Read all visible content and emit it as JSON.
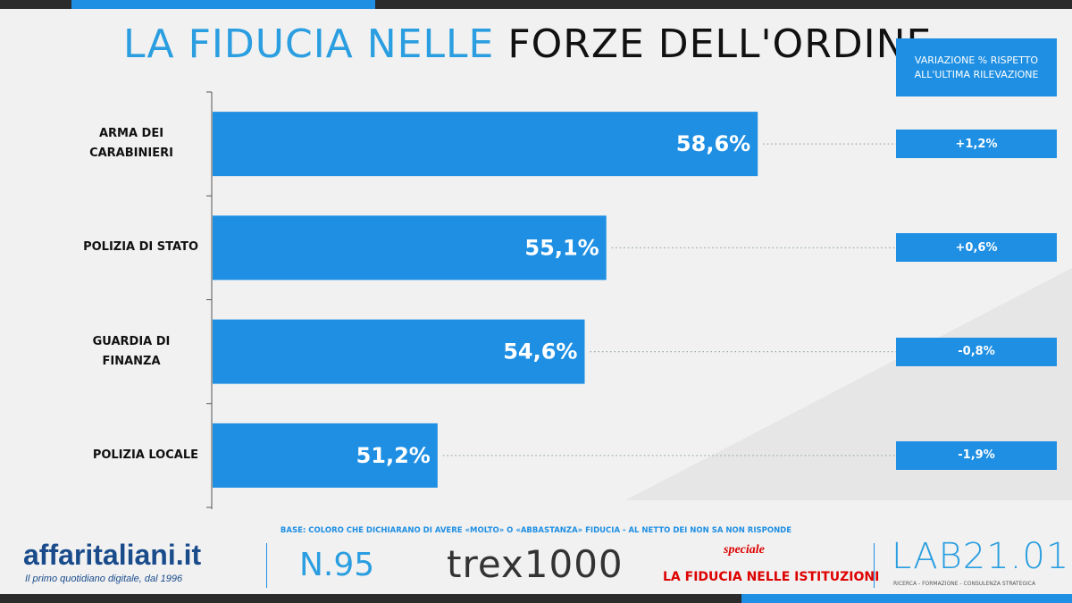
{
  "chart_data": {
    "type": "barh",
    "title": [
      "LA FIDUCIA NELLE",
      "FORZE DELL'ORDINE"
    ],
    "categories": [
      "ARMA DEI CARABINIERI",
      "POLIZIA DI STATO",
      "GUARDIA DI FINANZA",
      "POLIZIA LOCALE"
    ],
    "values": [
      58.6,
      55.1,
      54.6,
      51.2
    ],
    "value_labels": [
      "58,6%",
      "55,1%",
      "54,6%",
      "51,2%"
    ],
    "color": "#1e8fe3",
    "xlim": [
      46,
      60
    ],
    "change": {
      "title": "VARIAZIONE % RISPETTO ALL'ULTIMA RILEVAZIONE",
      "values": [
        1.2,
        0.6,
        -0.8,
        -1.9
      ],
      "value_labels": [
        "+1,2%",
        "+0,6%",
        "-0,8%",
        "-1,9%"
      ]
    },
    "note": "BASE: COLORO CHE DICHIARANO DI AVERE «MOLTO» O «ABBASTANZA» FIDUCIA - AL NETTO DEI NON SA NON RISPONDE"
  },
  "footer": {
    "brand": "affaritaliani.it",
    "tagline": "Il primo quotidiano digitale, dal 1996",
    "issue": "N.95",
    "logo": "trex1000",
    "special_tag": "speciale",
    "special_title": "LA FIDUCIA NELLE ISTITUZIONI",
    "lab": "LAB21.01",
    "lab_tagline": "RICERCA - FORMAZIONE - CONSULENZA STRATEGICA"
  }
}
